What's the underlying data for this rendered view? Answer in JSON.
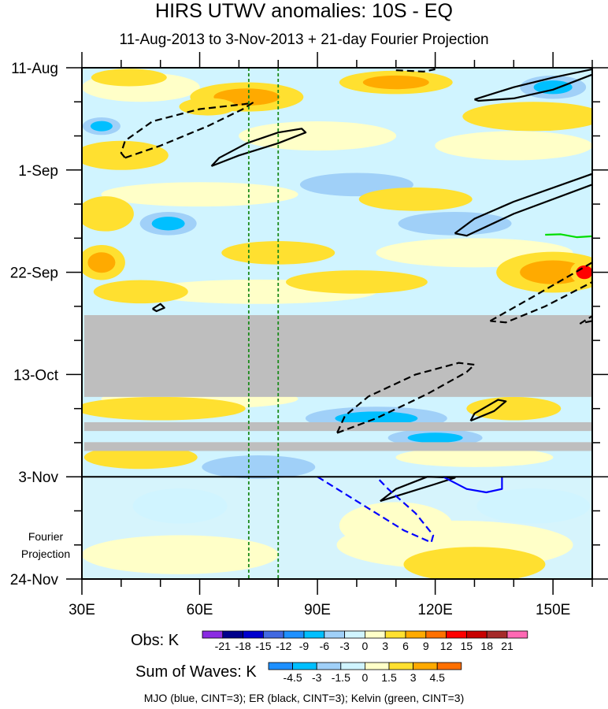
{
  "title": "HIRS UTWV anomalies: 10S - EQ",
  "subtitle": "11-Aug-2013 to 3-Nov-2013 + 21-day Fourier Projection",
  "footer": "MJO (blue, CINT=3); ER (black, CINT=3); Kelvin (green, CINT=3)",
  "projection_label": [
    "Fourier",
    "Projection"
  ],
  "chart_data": {
    "type": "heatmap",
    "x_axis": {
      "range": [
        30,
        160
      ],
      "ticks": [
        30,
        60,
        90,
        120,
        150
      ],
      "tick_labels": [
        "30E",
        "60E",
        "90E",
        "120E",
        "150E"
      ],
      "minor_step": 10
    },
    "y_axis": {
      "unit": "days since 11-Aug-2013",
      "range": [
        0,
        105
      ],
      "ticks": [
        0,
        21,
        42,
        63,
        84,
        105
      ],
      "tick_labels": [
        "11-Aug",
        "1-Sep",
        "22-Sep",
        "13-Oct",
        "3-Nov",
        "24-Nov"
      ],
      "minor_step": 7
    },
    "observation_end_day": 84,
    "reference_lines_lon": [
      72.5,
      80
    ],
    "reference_line_color": "#1a8a1a",
    "missing_data_days": [
      [
        50.8,
        67.6
      ],
      [
        72.8,
        74.6
      ],
      [
        76.9,
        78.7
      ]
    ],
    "missing_color": "#bebebe",
    "obs_colorbar": {
      "label": "Obs: K",
      "colors": [
        "#8a2be2",
        "#00008b",
        "#0000cd",
        "#4169e1",
        "#1e90ff",
        "#00bfff",
        "#a0d0f8",
        "#d0f4ff",
        "#ffffc8",
        "#ffe030",
        "#ffaa00",
        "#ff7000",
        "#ff0000",
        "#c80000",
        "#a52a2a",
        "#ff69b4"
      ],
      "levels": [
        "-21",
        "-18",
        "-15",
        "-12",
        "-9",
        "-6",
        "-3",
        "0",
        "3",
        "6",
        "9",
        "12",
        "15",
        "18",
        "21"
      ]
    },
    "waves_colorbar": {
      "label": "Sum of Waves: K",
      "colors": [
        "#1e90ff",
        "#00bfff",
        "#a0d0f8",
        "#d0f4ff",
        "#ffffc8",
        "#ffe030",
        "#ffaa00",
        "#ff7000"
      ],
      "levels": [
        "-4.5",
        "-3",
        "-1.5",
        "0",
        "1.5",
        "3",
        "4.5"
      ]
    },
    "field_blobs": [
      {
        "lon": 42,
        "day": 2,
        "rlon": 8,
        "rday": 1.5,
        "v": 4
      },
      {
        "lon": 72,
        "day": 6,
        "rlon": 12,
        "rday": 2.5,
        "v": 7
      },
      {
        "lon": 62,
        "day": 8,
        "rlon": 6,
        "rday": 1.5,
        "v": 4
      },
      {
        "lon": 40,
        "day": 18,
        "rlon": 10,
        "rday": 2.5,
        "v": 5
      },
      {
        "lon": 35,
        "day": 12,
        "rlon": 4,
        "rday": 1.5,
        "v": -7
      },
      {
        "lon": 110,
        "day": 3,
        "rlon": 12,
        "rday": 2,
        "v": 6
      },
      {
        "lon": 150,
        "day": 4,
        "rlon": 7,
        "rday": 2,
        "v": -7
      },
      {
        "lon": 145,
        "day": 10,
        "rlon": 15,
        "rday": 2.5,
        "v": 5
      },
      {
        "lon": 100,
        "day": 24,
        "rlon": 12,
        "rday": 2,
        "v": -5
      },
      {
        "lon": 115,
        "day": 27,
        "rlon": 12,
        "rday": 2,
        "v": 4
      },
      {
        "lon": 52,
        "day": 32,
        "rlon": 6,
        "rday": 2,
        "v": -8
      },
      {
        "lon": 36,
        "day": 30,
        "rlon": 6,
        "rday": 3,
        "v": 5
      },
      {
        "lon": 35,
        "day": 40,
        "rlon": 5,
        "rday": 3,
        "v": 6
      },
      {
        "lon": 80,
        "day": 38,
        "rlon": 12,
        "rday": 2,
        "v": 4
      },
      {
        "lon": 150,
        "day": 42,
        "rlon": 12,
        "rday": 3.5,
        "v": 8
      },
      {
        "lon": 158,
        "day": 42,
        "rlon": 3,
        "rday": 2,
        "v": 13
      },
      {
        "lon": 100,
        "day": 44,
        "rlon": 15,
        "rday": 2,
        "v": 4
      },
      {
        "lon": 45,
        "day": 46,
        "rlon": 10,
        "rday": 2,
        "v": 3
      },
      {
        "lon": 125,
        "day": 32,
        "rlon": 12,
        "rday": 2,
        "v": -5
      },
      {
        "lon": 50,
        "day": 70,
        "rlon": 18,
        "rday": 2,
        "v": 5
      },
      {
        "lon": 105,
        "day": 72,
        "rlon": 15,
        "rday": 2,
        "v": -7
      },
      {
        "lon": 140,
        "day": 70,
        "rlon": 10,
        "rday": 2,
        "v": 4
      },
      {
        "lon": 120,
        "day": 76,
        "rlon": 10,
        "rday": 1.5,
        "v": -8
      },
      {
        "lon": 45,
        "day": 80,
        "rlon": 12,
        "rday": 2,
        "v": 4
      },
      {
        "lon": 75,
        "day": 82,
        "rlon": 12,
        "rday": 2,
        "v": -4
      },
      {
        "lon": 110,
        "day": 94,
        "rlon": 12,
        "rday": 4,
        "v": 2
      },
      {
        "lon": 130,
        "day": 102,
        "rlon": 15,
        "rday": 3,
        "v": 3.5
      },
      {
        "lon": 55,
        "day": 90,
        "rlon": 10,
        "rday": 3,
        "v": -2
      },
      {
        "lon": 145,
        "day": 90,
        "rlon": 12,
        "rday": 3,
        "v": -2
      }
    ],
    "contours": [
      {
        "wave": "ER",
        "color": "#000000",
        "dashed": true,
        "points": [
          [
            41,
            18.5
          ],
          [
            50,
            16
          ],
          [
            62,
            12
          ],
          [
            71,
            8.5
          ],
          [
            73.5,
            7.2
          ],
          [
            71,
            7.5
          ],
          [
            60,
            8.5
          ],
          [
            48,
            11
          ],
          [
            41,
            15
          ],
          [
            40,
            17.5
          ],
          [
            41,
            18.5
          ]
        ]
      },
      {
        "wave": "ER",
        "color": "#000000",
        "dashed": false,
        "points": [
          [
            63,
            20.2
          ],
          [
            70,
            18
          ],
          [
            80,
            15.5
          ],
          [
            87,
            13.3
          ],
          [
            86,
            12.5
          ],
          [
            80,
            13.3
          ],
          [
            72,
            15.5
          ],
          [
            65,
            18.5
          ],
          [
            63,
            20.2
          ]
        ]
      },
      {
        "wave": "ER",
        "color": "#000000",
        "dashed": false,
        "points": [
          [
            130,
            6.5
          ],
          [
            140,
            4
          ],
          [
            150,
            2
          ],
          [
            160,
            0.3
          ],
          [
            160,
            1.4
          ],
          [
            150,
            4.5
          ],
          [
            140,
            6.3
          ],
          [
            131,
            6.8
          ],
          [
            130,
            6.5
          ]
        ]
      },
      {
        "wave": "ER",
        "color": "#000000",
        "dashed": false,
        "points": [
          [
            125,
            34
          ],
          [
            130,
            31
          ],
          [
            140,
            27.5
          ],
          [
            160,
            21.8
          ],
          [
            160,
            24
          ],
          [
            140,
            30
          ],
          [
            128,
            34.5
          ],
          [
            125,
            34
          ]
        ]
      },
      {
        "wave": "ER",
        "color": "#000000",
        "dashed": true,
        "points": [
          [
            134,
            52
          ],
          [
            145,
            47
          ],
          [
            160,
            40
          ],
          [
            160,
            44
          ],
          [
            148,
            49
          ],
          [
            138,
            52.3
          ],
          [
            134,
            52
          ]
        ]
      },
      {
        "wave": "ER",
        "color": "#000000",
        "dashed": true,
        "points": [
          [
            160,
            52
          ],
          [
            157,
            52.5
          ],
          [
            160,
            51
          ]
        ]
      },
      {
        "wave": "ER",
        "color": "#000000",
        "dashed": true,
        "points": [
          [
            110,
            0.5
          ],
          [
            117,
            0.8
          ],
          [
            120,
            0.3
          ]
        ]
      },
      {
        "wave": "ER",
        "color": "#000000",
        "dashed": true,
        "points": [
          [
            95,
            75
          ],
          [
            105,
            72
          ],
          [
            118,
            67
          ],
          [
            128,
            62.5
          ],
          [
            130,
            61
          ],
          [
            126,
            60.6
          ],
          [
            115,
            63
          ],
          [
            103,
            67.5
          ],
          [
            97,
            71.5
          ],
          [
            95,
            75
          ]
        ]
      },
      {
        "wave": "ER",
        "color": "#000000",
        "dashed": false,
        "points": [
          [
            129,
            72.5
          ],
          [
            135,
            70.5
          ],
          [
            138,
            68.5
          ],
          [
            136,
            68.2
          ],
          [
            130,
            71
          ],
          [
            129,
            72.5
          ]
        ]
      },
      {
        "wave": "ER",
        "color": "#000000",
        "dashed": false,
        "points": [
          [
            48,
            49.5
          ],
          [
            50,
            48.5
          ],
          [
            51,
            49.3
          ],
          [
            49,
            50
          ],
          [
            48,
            49.5
          ]
        ]
      },
      {
        "wave": "ER",
        "color": "#000000",
        "dashed": false,
        "points": [
          [
            106,
            89
          ],
          [
            112,
            87.5
          ],
          [
            120,
            85.5
          ],
          [
            125,
            84.2
          ],
          [
            118,
            84
          ],
          [
            110,
            86.5
          ],
          [
            106,
            89
          ]
        ]
      },
      {
        "wave": "MJO",
        "color": "#0000ff",
        "dashed": false,
        "points": [
          [
            122,
            84
          ],
          [
            128,
            86.5
          ],
          [
            133,
            87.2
          ],
          [
            137,
            86.5
          ],
          [
            137,
            84
          ]
        ]
      },
      {
        "wave": "MJO",
        "color": "#0000ff",
        "dashed": true,
        "points": [
          [
            90,
            84
          ],
          [
            100,
            89
          ],
          [
            112,
            95
          ],
          [
            119,
            97.5
          ],
          [
            119.5,
            96
          ],
          [
            115,
            91.5
          ],
          [
            108,
            86.5
          ],
          [
            105,
            84
          ]
        ]
      },
      {
        "wave": "Kelvin",
        "color": "#00dd00",
        "dashed": false,
        "points": [
          [
            148,
            34.3
          ],
          [
            152,
            34.2
          ],
          [
            156,
            34.8
          ],
          [
            160,
            34.6
          ]
        ]
      }
    ]
  }
}
